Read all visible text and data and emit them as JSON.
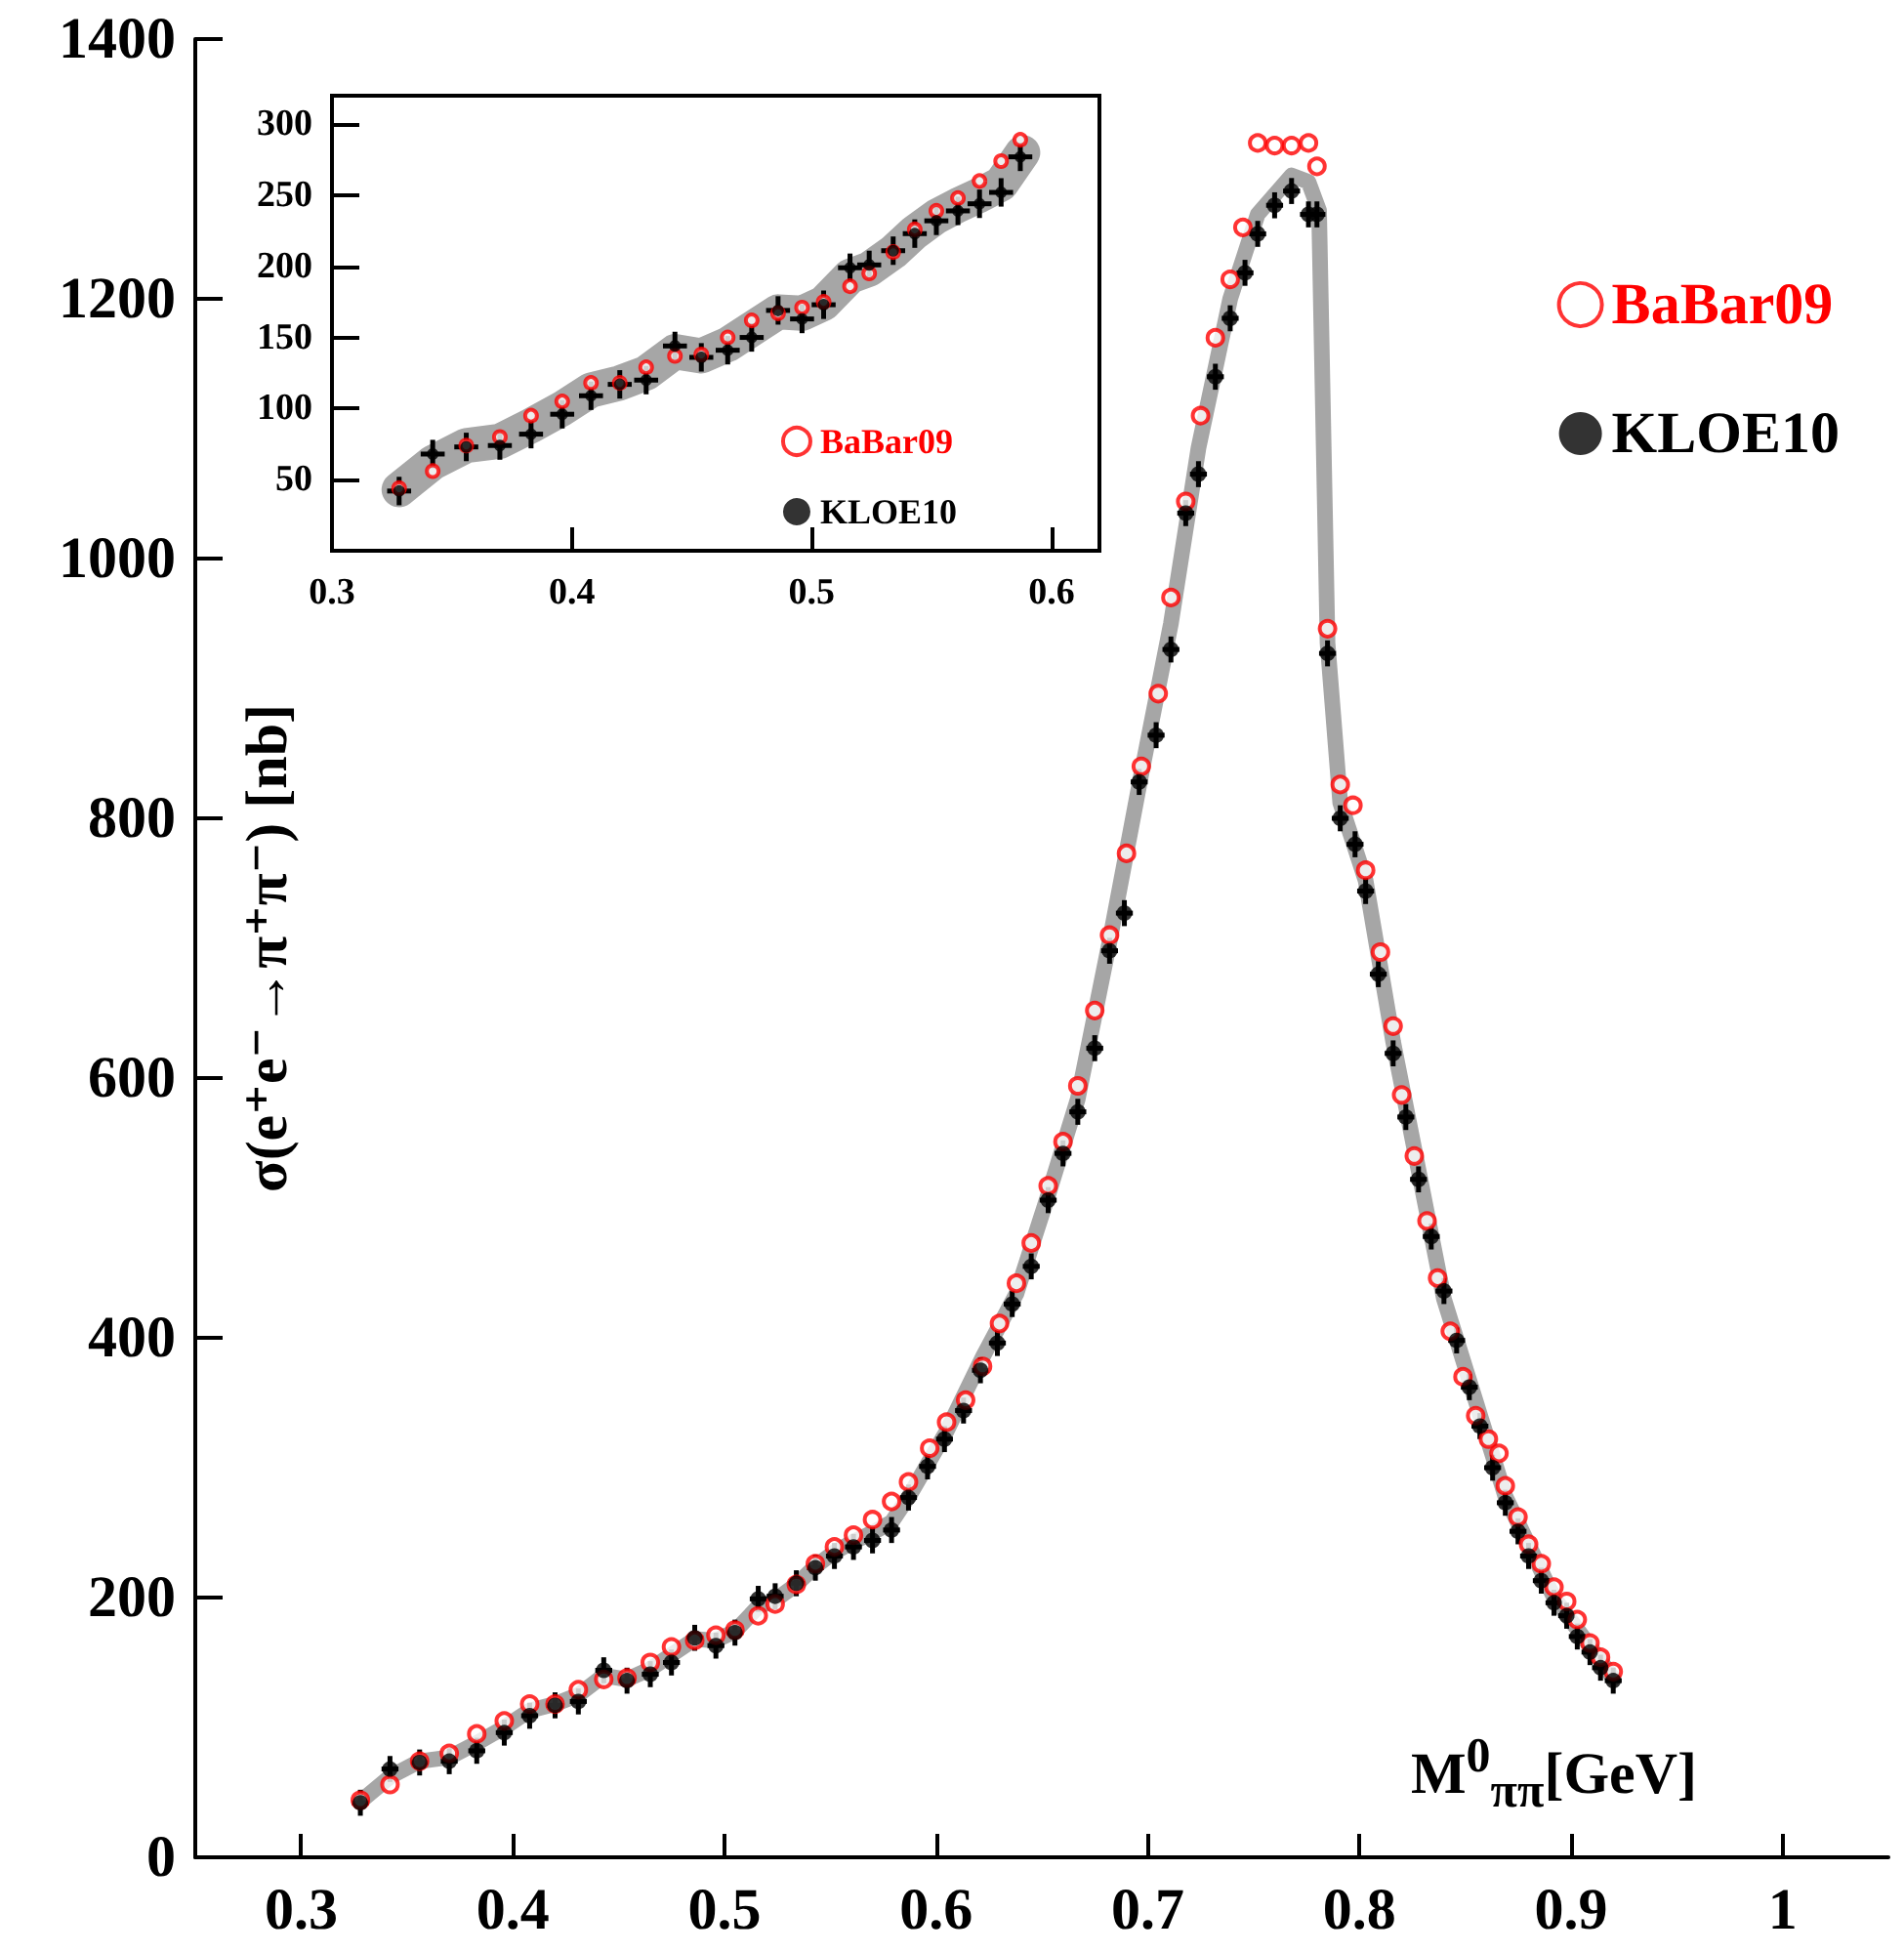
{
  "chart_data": [
    {
      "type": "scatter",
      "xlabel": "M$^{0}$$_{ππ}$[GeV]",
      "ylabel": "σ(e⁺e⁻→π⁺π⁻) [nb]",
      "xlim": [
        0.25,
        1.05
      ],
      "xticks": [
        0.3,
        0.4,
        0.5,
        0.6,
        0.7,
        0.8,
        0.9,
        1
      ],
      "ylim": [
        0,
        1400
      ],
      "yticks": [
        0,
        200,
        400,
        600,
        800,
        1000,
        1200,
        1400
      ],
      "legend": "top right",
      "series": [
        {
          "type": "line",
          "color": "#a6a6a6",
          "x": [
            0.328,
            0.342,
            0.356,
            0.37,
            0.383,
            0.396,
            0.408,
            0.42,
            0.431,
            0.443,
            0.454,
            0.465,
            0.475,
            0.486,
            0.496,
            0.505,
            0.516,
            0.524,
            0.534,
            0.543,
            0.552,
            0.561,
            0.57,
            0.579,
            0.588,
            0.605,
            0.622,
            0.638,
            0.653,
            0.667,
            0.682,
            0.697,
            0.711,
            0.724,
            0.739,
            0.752,
            0.768,
            0.776,
            0.781,
            0.785,
            0.791,
            0.803,
            0.816,
            0.84,
            0.869,
            0.892,
            0.92
          ],
          "values": [
            43,
            62,
            74,
            77,
            88,
            100,
            113,
            118,
            125,
            140,
            137,
            145,
            156,
            168,
            167,
            174,
            193,
            198,
            210,
            224,
            235,
            243,
            250,
            258,
            280,
            328,
            385,
            434,
            510,
            584,
            705,
            834,
            950,
            1085,
            1200,
            1265,
            1295,
            1290,
            1268,
            935,
            812,
            752,
            628,
            430,
            278,
            200,
            138
          ]
        },
        {
          "name": "BaBar09",
          "color": "#ff0000",
          "marker": "circle",
          "x": [
            0.328,
            0.342,
            0.356,
            0.37,
            0.383,
            0.396,
            0.408,
            0.42,
            0.431,
            0.443,
            0.454,
            0.465,
            0.475,
            0.486,
            0.496,
            0.505,
            0.516,
            0.524,
            0.534,
            0.543,
            0.552,
            0.561,
            0.57,
            0.579,
            0.587,
            0.597,
            0.605,
            0.614,
            0.622,
            0.63,
            0.638,
            0.645,
            0.653,
            0.66,
            0.667,
            0.675,
            0.682,
            0.69,
            0.697,
            0.705,
            0.711,
            0.718,
            0.725,
            0.732,
            0.739,
            0.745,
            0.752,
            0.76,
            0.768,
            0.776,
            0.78,
            0.785,
            0.791,
            0.797,
            0.803,
            0.81,
            0.816,
            0.82,
            0.826,
            0.832,
            0.837,
            0.843,
            0.849,
            0.855,
            0.861,
            0.866,
            0.869,
            0.875,
            0.88,
            0.886,
            0.892,
            0.898,
            0.903,
            0.909,
            0.914,
            0.92
          ],
          "values": [
            44,
            56,
            74,
            80,
            95,
            105,
            118,
            118,
            129,
            137,
            138,
            150,
            162,
            167,
            171,
            175,
            186,
            195,
            210,
            226,
            239,
            248,
            260,
            274,
            289,
            315,
            335,
            352,
            378,
            411,
            442,
            473,
            517,
            551,
            594,
            652,
            710,
            773,
            840,
            896,
            970,
            1044,
            1110,
            1170,
            1215,
            1255,
            1320,
            1318,
            1318,
            1320,
            1302,
            946,
            826,
            810,
            760,
            697,
            640,
            587,
            540,
            490,
            446,
            405,
            370,
            340,
            322,
            311,
            286,
            262,
            241,
            226,
            208,
            197,
            183,
            165,
            154,
            143
          ]
        },
        {
          "name": "KLOE10",
          "color": "#000000",
          "marker": "circle",
          "x": [
            0.328,
            0.342,
            0.356,
            0.37,
            0.383,
            0.396,
            0.408,
            0.42,
            0.431,
            0.443,
            0.454,
            0.465,
            0.475,
            0.486,
            0.496,
            0.505,
            0.516,
            0.524,
            0.534,
            0.543,
            0.552,
            0.561,
            0.57,
            0.579,
            0.587,
            0.596,
            0.604,
            0.613,
            0.621,
            0.629,
            0.636,
            0.645,
            0.653,
            0.66,
            0.667,
            0.675,
            0.682,
            0.689,
            0.696,
            0.704,
            0.711,
            0.718,
            0.724,
            0.732,
            0.739,
            0.746,
            0.752,
            0.76,
            0.768,
            0.776,
            0.78,
            0.785,
            0.791,
            0.798,
            0.803,
            0.809,
            0.816,
            0.822,
            0.828,
            0.834,
            0.84,
            0.846,
            0.852,
            0.857,
            0.863,
            0.869,
            0.875,
            0.88,
            0.886,
            0.892,
            0.898,
            0.903,
            0.909,
            0.914,
            0.92
          ],
          "values": [
            42,
            68,
            73,
            74,
            82,
            96,
            109,
            117,
            120,
            144,
            136,
            141,
            150,
            169,
            163,
            173,
            199,
            201,
            211,
            223,
            232,
            239,
            244,
            252,
            277,
            301,
            322,
            344,
            375,
            396,
            426,
            455,
            506,
            542,
            574,
            623,
            698,
            727,
            828,
            864,
            930,
            1035,
            1065,
            1140,
            1185,
            1220,
            1250,
            1272,
            1283,
            1265,
            1265,
            927,
            800,
            780,
            744,
            680,
            619,
            570,
            522,
            478,
            436,
            398,
            362,
            332,
            300,
            273,
            251,
            232,
            213,
            196,
            186,
            170,
            158,
            146,
            136
          ],
          "errors": [
            10,
            10,
            10,
            10,
            10,
            10,
            10,
            10,
            10,
            10,
            10,
            10,
            10,
            10,
            10,
            10,
            10,
            10,
            10,
            10,
            10,
            10,
            10,
            10,
            10,
            10,
            10,
            10,
            10,
            10,
            10,
            10,
            10,
            10,
            10,
            10,
            10,
            10,
            10,
            10,
            10,
            10,
            10,
            10,
            10,
            10,
            10,
            10,
            10,
            10,
            10,
            10,
            10,
            10,
            10,
            10,
            10,
            10,
            10,
            10,
            10,
            10,
            10,
            10,
            10,
            10,
            10,
            10,
            10,
            10,
            10,
            10,
            10,
            10,
            10
          ],
          "xerrors": [
            0.004,
            0.004,
            0.004,
            0.004,
            0.004,
            0.004,
            0.004,
            0.004,
            0.004,
            0.004,
            0.004,
            0.004,
            0.004,
            0.004,
            0.004,
            0.004,
            0.004,
            0.004,
            0.004,
            0.004,
            0.004,
            0.004,
            0.004,
            0.004,
            0.004,
            0.004,
            0.004,
            0.004,
            0.004,
            0.004,
            0.004,
            0.004,
            0.004,
            0.004,
            0.004,
            0.004,
            0.004,
            0.004,
            0.004,
            0.004,
            0.004,
            0.004,
            0.004,
            0.004,
            0.004,
            0.004,
            0.004,
            0.004,
            0.004,
            0.004,
            0.004,
            0.004,
            0.004,
            0.004,
            0.004,
            0.004,
            0.004,
            0.004,
            0.004,
            0.004,
            0.004,
            0.004,
            0.004,
            0.004,
            0.004,
            0.004,
            0.004,
            0.004,
            0.004,
            0.004,
            0.004,
            0.004,
            0.004,
            0.004,
            0.004
          ]
        }
      ]
    },
    {
      "type": "scatter",
      "xlim": [
        0.3,
        0.62
      ],
      "xticks": [
        0.3,
        0.4,
        0.5,
        0.6
      ],
      "ylim": [
        0,
        320
      ],
      "yticks": [
        50,
        100,
        150,
        200,
        250,
        300
      ],
      "legend": "bottom right",
      "series": [
        {
          "type": "line",
          "color": "#a6a6a6",
          "x": [
            0.328,
            0.342,
            0.356,
            0.37,
            0.383,
            0.396,
            0.408,
            0.42,
            0.431,
            0.443,
            0.454,
            0.465,
            0.475,
            0.486,
            0.496,
            0.505,
            0.516,
            0.524,
            0.534,
            0.543,
            0.552,
            0.561,
            0.57,
            0.579,
            0.588
          ],
          "values": [
            43,
            62,
            74,
            77,
            88,
            100,
            113,
            118,
            125,
            140,
            137,
            145,
            156,
            168,
            167,
            174,
            193,
            198,
            210,
            224,
            235,
            243,
            250,
            258,
            280
          ]
        },
        {
          "name": "BaBar09",
          "color": "#ff0000",
          "marker": "circle",
          "x": [
            0.328,
            0.342,
            0.356,
            0.37,
            0.383,
            0.396,
            0.408,
            0.42,
            0.431,
            0.443,
            0.454,
            0.465,
            0.475,
            0.486,
            0.496,
            0.505,
            0.516,
            0.524,
            0.534,
            0.543,
            0.552,
            0.561,
            0.57,
            0.579,
            0.587
          ],
          "values": [
            44,
            56,
            74,
            80,
            95,
            105,
            118,
            118,
            129,
            137,
            138,
            150,
            162,
            167,
            171,
            175,
            186,
            195,
            210,
            226,
            239,
            248,
            260,
            274,
            289
          ]
        },
        {
          "name": "KLOE10",
          "color": "#000000",
          "marker": "circle",
          "x": [
            0.328,
            0.342,
            0.356,
            0.37,
            0.383,
            0.396,
            0.408,
            0.42,
            0.431,
            0.443,
            0.454,
            0.465,
            0.475,
            0.486,
            0.496,
            0.505,
            0.516,
            0.524,
            0.534,
            0.543,
            0.552,
            0.561,
            0.57,
            0.579,
            0.587
          ],
          "values": [
            42,
            68,
            73,
            74,
            82,
            96,
            109,
            117,
            120,
            144,
            136,
            141,
            150,
            169,
            163,
            173,
            199,
            201,
            211,
            223,
            232,
            239,
            244,
            252,
            277
          ],
          "errors": [
            10,
            10,
            10,
            10,
            10,
            10,
            10,
            10,
            10,
            10,
            10,
            10,
            10,
            10,
            10,
            10,
            10,
            10,
            10,
            10,
            10,
            10,
            10,
            10,
            10
          ],
          "xerrors": [
            0.005,
            0.005,
            0.005,
            0.005,
            0.005,
            0.005,
            0.005,
            0.005,
            0.005,
            0.005,
            0.005,
            0.005,
            0.005,
            0.005,
            0.005,
            0.005,
            0.005,
            0.005,
            0.005,
            0.005,
            0.005,
            0.005,
            0.005,
            0.005,
            0.005
          ]
        }
      ]
    }
  ]
}
